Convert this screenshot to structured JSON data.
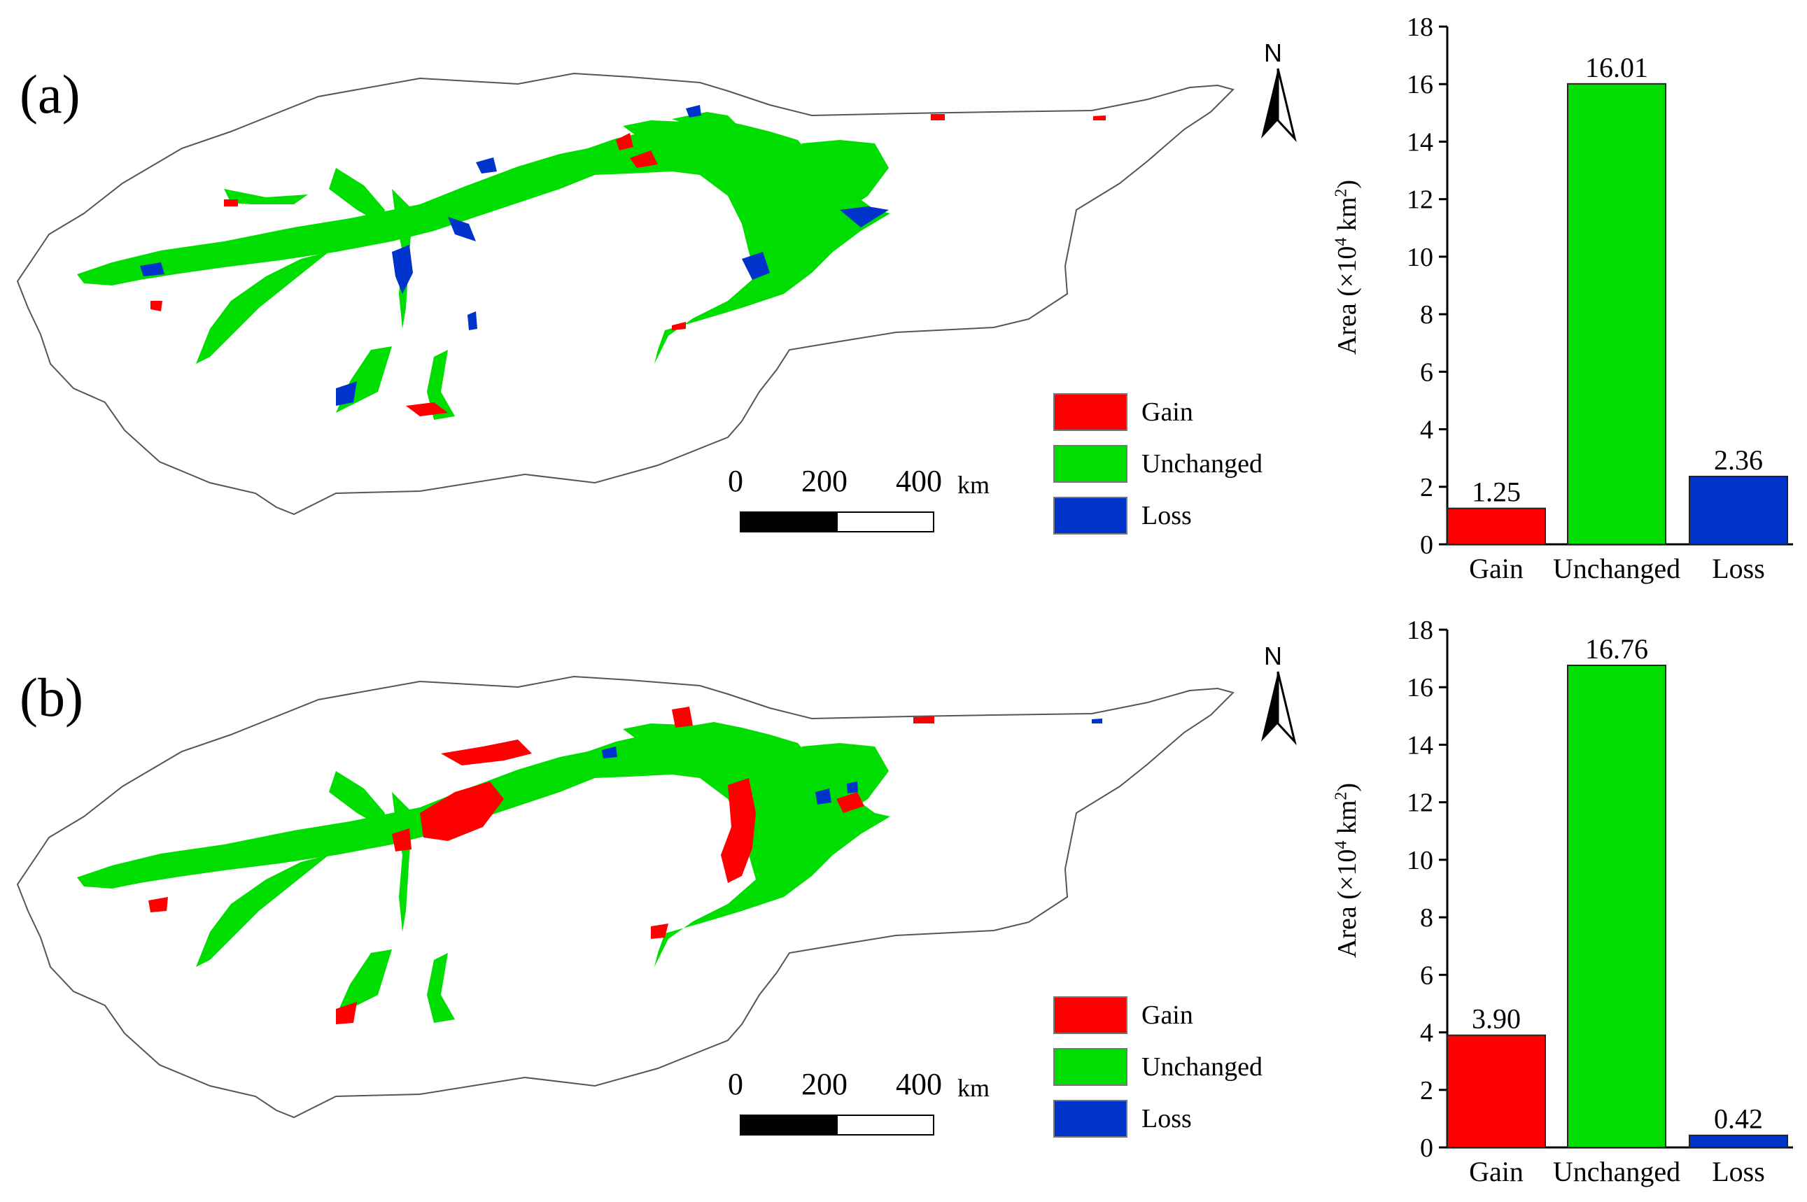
{
  "panels": [
    {
      "label": "(a)",
      "north": "N",
      "legend": [
        {
          "label": "Gain",
          "color": "#ff0000"
        },
        {
          "label": "Unchanged",
          "color": "#00dd00"
        },
        {
          "label": "Loss",
          "color": "#0033cc"
        }
      ],
      "scale_bar": {
        "ticks": [
          "0",
          "200",
          "400"
        ],
        "unit": "km"
      }
    },
    {
      "label": "(b)",
      "north": "N",
      "legend": [
        {
          "label": "Gain",
          "color": "#ff0000"
        },
        {
          "label": "Unchanged",
          "color": "#00dd00"
        },
        {
          "label": "Loss",
          "color": "#0033cc"
        }
      ],
      "scale_bar": {
        "ticks": [
          "0",
          "200",
          "400"
        ],
        "unit": "km"
      }
    }
  ],
  "chart_data": [
    {
      "type": "bar",
      "categories": [
        "Gain",
        "Unchanged",
        "Loss"
      ],
      "values": [
        1.25,
        16.01,
        2.36
      ],
      "data_labels": [
        "1.25",
        "16.01",
        "2.36"
      ],
      "colors": [
        "#ff0000",
        "#00dd00",
        "#0033cc"
      ],
      "ylabel_prefix": "Area (×10",
      "ylabel_exp1": "4",
      "ylabel_mid": " km",
      "ylabel_exp2": "2",
      "ylabel_suffix": ")",
      "ylim": [
        0,
        18
      ],
      "yticks": [
        0,
        2,
        4,
        6,
        8,
        10,
        12,
        14,
        16,
        18
      ]
    },
    {
      "type": "bar",
      "categories": [
        "Gain",
        "Unchanged",
        "Loss"
      ],
      "values": [
        3.9,
        16.76,
        0.42
      ],
      "data_labels": [
        "3.90",
        "16.76",
        "0.42"
      ],
      "colors": [
        "#ff0000",
        "#00dd00",
        "#0033cc"
      ],
      "ylabel_prefix": "Area (×10",
      "ylabel_exp1": "4",
      "ylabel_mid": " km",
      "ylabel_exp2": "2",
      "ylabel_suffix": ")",
      "ylim": [
        0,
        18
      ],
      "yticks": [
        0,
        2,
        4,
        6,
        8,
        10,
        12,
        14,
        16,
        18
      ]
    }
  ]
}
